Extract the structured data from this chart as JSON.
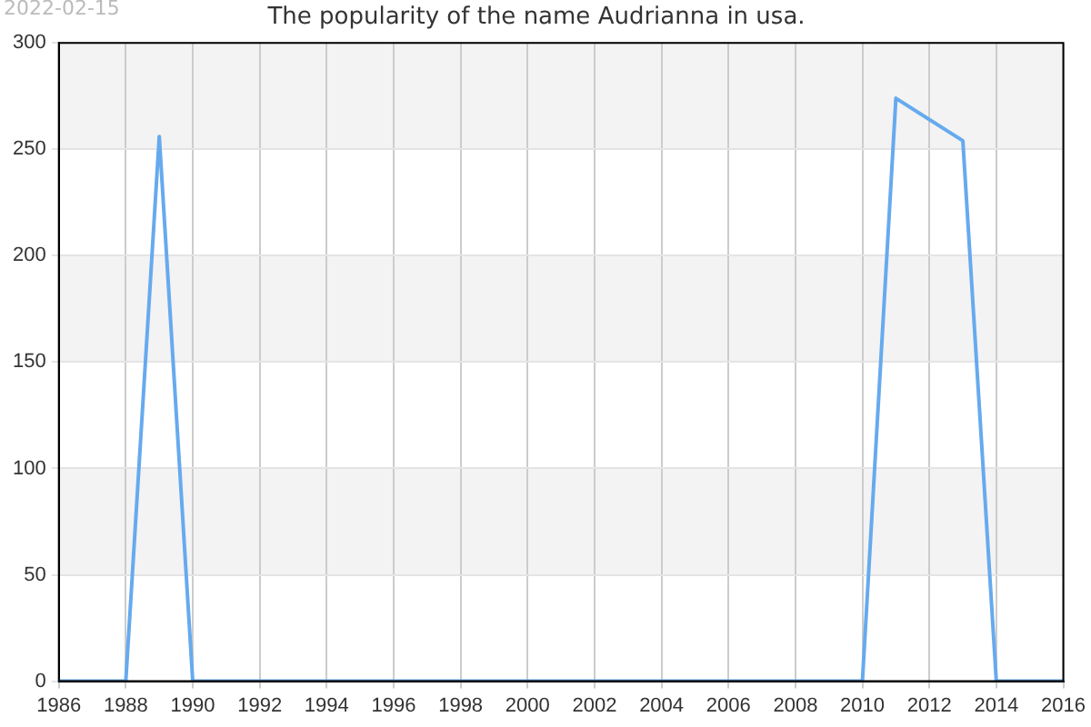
{
  "chart_data": {
    "type": "line",
    "title": "The popularity of the name Audrianna in usa.",
    "annotations": [
      "2022-02-15"
    ],
    "x": [
      1986,
      1987,
      1988,
      1989,
      1990,
      1991,
      1992,
      1993,
      1994,
      1995,
      1996,
      1997,
      1998,
      1999,
      2000,
      2001,
      2002,
      2003,
      2004,
      2005,
      2006,
      2007,
      2008,
      2009,
      2010,
      2011,
      2013,
      2014,
      2015,
      2016
    ],
    "series": [
      {
        "color": "#66aaee",
        "values": [
          0,
          0,
          0,
          256,
          0,
          0,
          0,
          0,
          0,
          0,
          0,
          0,
          0,
          0,
          0,
          0,
          0,
          0,
          0,
          0,
          0,
          0,
          0,
          0,
          0,
          274,
          254,
          0,
          0,
          0
        ]
      }
    ],
    "xlim": [
      1986,
      2016
    ],
    "xticks": [
      1986,
      1988,
      1990,
      1992,
      1994,
      1996,
      1998,
      2000,
      2002,
      2004,
      2006,
      2008,
      2010,
      2012,
      2014,
      2016
    ],
    "ylim": [
      0,
      300
    ],
    "yticks": [
      0,
      50,
      100,
      150,
      200,
      250,
      300
    ],
    "grid": true,
    "legend": false,
    "marker": "none",
    "line_style": "solid"
  }
}
